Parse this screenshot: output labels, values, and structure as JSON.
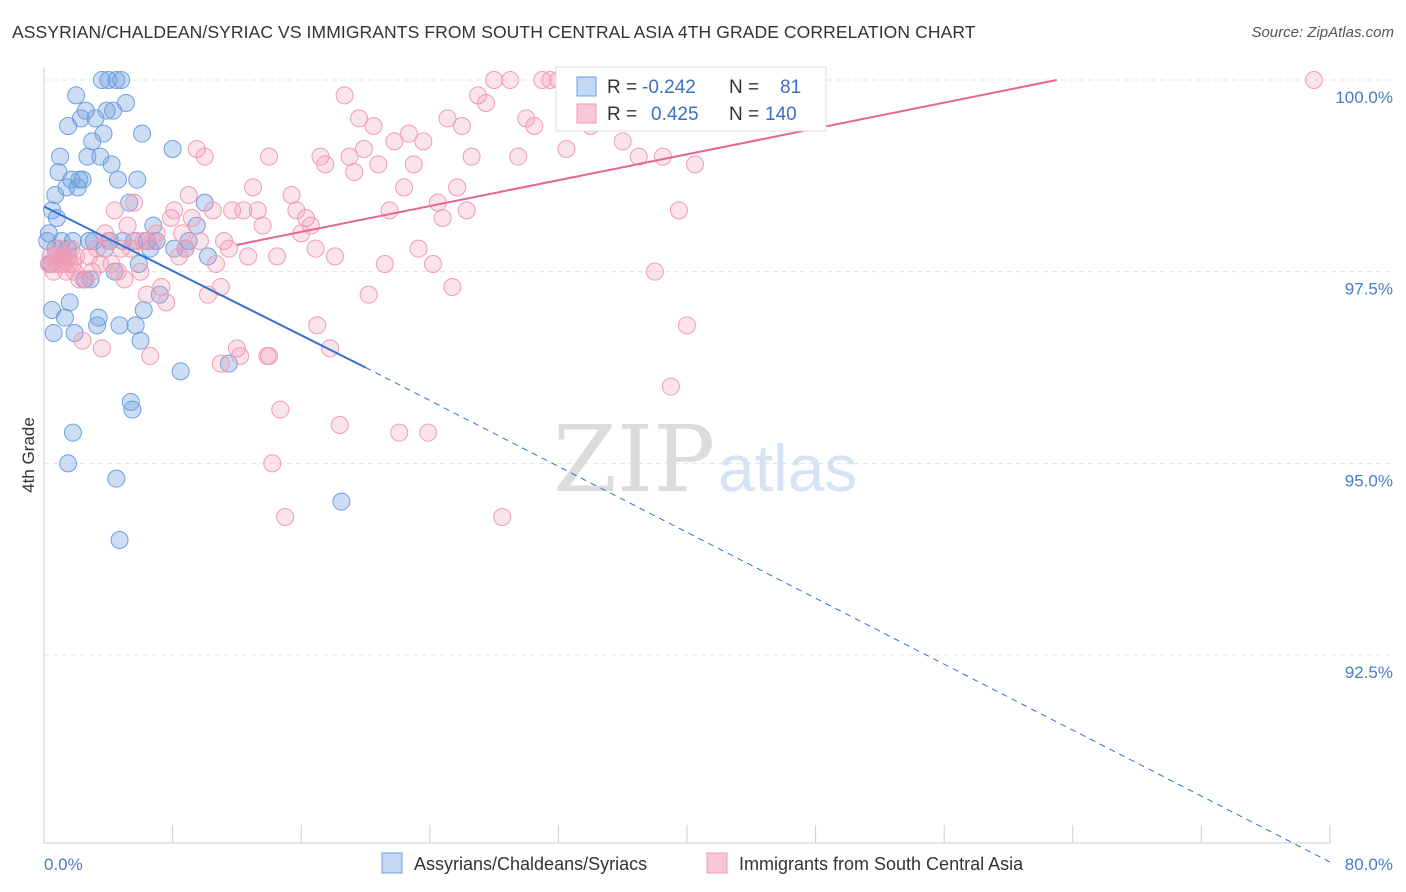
{
  "title": "ASSYRIAN/CHALDEAN/SYRIAC VS IMMIGRANTS FROM SOUTH CENTRAL ASIA 4TH GRADE CORRELATION CHART",
  "source": "Source: ZipAtlas.com",
  "watermark": {
    "zip": "ZIP",
    "atlas": "atlas"
  },
  "chart_data": {
    "type": "scatter",
    "xlabel": "",
    "ylabel": "4th Grade",
    "xlim": [
      0,
      80
    ],
    "ylim": [
      90.0,
      100.2
    ],
    "x_tick_labels": {
      "left": "0.0%",
      "right": "80.0%"
    },
    "y_ticks": [
      {
        "value": 100.0,
        "label": "100.0%"
      },
      {
        "value": 97.5,
        "label": "97.5%"
      },
      {
        "value": 95.0,
        "label": "95.0%"
      },
      {
        "value": 92.5,
        "label": "92.5%"
      }
    ],
    "grid": "horizontal dashed",
    "legend_position": "bottom-center",
    "colors": {
      "blue": "#6fa0e0",
      "blue_line": "#2f72d1",
      "pink": "#f29bb5",
      "pink_line": "#e8648f"
    },
    "stats": {
      "r_label": "R =",
      "n_label": "N =",
      "blue": {
        "r": "-0.242",
        "n": "81"
      },
      "pink": {
        "r": "0.425",
        "n": "140"
      }
    },
    "series": [
      {
        "name": "Assyrians/Chaldeans/Syriacs",
        "color": "#6fa0e0",
        "trend": {
          "x0": 0,
          "y0": 98.35,
          "x1": 20,
          "y1": 96.25,
          "dash_to_x": 80,
          "dash_to_y": 89.8
        },
        "points": [
          [
            0.2,
            97.9
          ],
          [
            0.3,
            98.0
          ],
          [
            0.4,
            97.6
          ],
          [
            0.5,
            98.3
          ],
          [
            0.5,
            97.0
          ],
          [
            0.6,
            96.7
          ],
          [
            0.7,
            98.5
          ],
          [
            0.7,
            97.8
          ],
          [
            0.8,
            98.2
          ],
          [
            0.9,
            98.8
          ],
          [
            1.0,
            99.0
          ],
          [
            1.1,
            97.9
          ],
          [
            1.2,
            97.7
          ],
          [
            1.3,
            96.9
          ],
          [
            1.4,
            98.6
          ],
          [
            1.5,
            99.4
          ],
          [
            1.5,
            97.8
          ],
          [
            1.6,
            97.1
          ],
          [
            1.7,
            98.7
          ],
          [
            1.8,
            97.9
          ],
          [
            1.9,
            96.7
          ],
          [
            2.0,
            99.8
          ],
          [
            2.1,
            98.6
          ],
          [
            2.2,
            98.7
          ],
          [
            2.3,
            99.5
          ],
          [
            2.4,
            98.7
          ],
          [
            2.5,
            97.4
          ],
          [
            2.6,
            99.6
          ],
          [
            2.7,
            99.0
          ],
          [
            2.8,
            97.9
          ],
          [
            2.9,
            97.4
          ],
          [
            3.0,
            99.2
          ],
          [
            3.1,
            97.9
          ],
          [
            3.2,
            99.5
          ],
          [
            3.3,
            96.8
          ],
          [
            3.4,
            96.9
          ],
          [
            3.5,
            99.0
          ],
          [
            3.6,
            100.0
          ],
          [
            3.7,
            99.3
          ],
          [
            3.8,
            97.8
          ],
          [
            3.9,
            99.6
          ],
          [
            4.0,
            100.0
          ],
          [
            4.1,
            97.9
          ],
          [
            4.2,
            98.9
          ],
          [
            4.3,
            99.6
          ],
          [
            4.4,
            97.5
          ],
          [
            4.5,
            100.0
          ],
          [
            4.6,
            98.7
          ],
          [
            4.7,
            96.8
          ],
          [
            4.8,
            100.0
          ],
          [
            4.9,
            97.9
          ],
          [
            5.1,
            99.7
          ],
          [
            5.3,
            98.4
          ],
          [
            5.4,
            95.8
          ],
          [
            5.5,
            95.7
          ],
          [
            5.6,
            97.9
          ],
          [
            5.7,
            96.8
          ],
          [
            5.8,
            98.7
          ],
          [
            5.9,
            97.6
          ],
          [
            6.0,
            96.6
          ],
          [
            6.1,
            99.3
          ],
          [
            6.2,
            97.0
          ],
          [
            6.4,
            97.9
          ],
          [
            6.6,
            97.8
          ],
          [
            6.8,
            98.1
          ],
          [
            7.0,
            97.9
          ],
          [
            7.2,
            97.2
          ],
          [
            8.0,
            99.1
          ],
          [
            8.1,
            97.8
          ],
          [
            8.5,
            96.2
          ],
          [
            8.8,
            97.8
          ],
          [
            9.0,
            97.9
          ],
          [
            9.5,
            98.1
          ],
          [
            10.0,
            98.4
          ],
          [
            10.2,
            97.7
          ],
          [
            11.5,
            96.3
          ],
          [
            18.5,
            94.5
          ],
          [
            1.5,
            95.0
          ],
          [
            1.8,
            95.4
          ],
          [
            4.5,
            94.8
          ],
          [
            4.7,
            94.0
          ]
        ]
      },
      {
        "name": "Immigrants from South Central Asia",
        "color": "#f29bb5",
        "trend": {
          "x0": 12,
          "y0": 97.85,
          "x1": 63,
          "y1": 100.0
        },
        "points": [
          [
            0.3,
            97.6
          ],
          [
            0.4,
            97.7
          ],
          [
            0.5,
            97.6
          ],
          [
            0.6,
            97.5
          ],
          [
            0.7,
            97.7
          ],
          [
            0.8,
            97.6
          ],
          [
            0.9,
            97.8
          ],
          [
            1.0,
            97.7
          ],
          [
            1.1,
            97.6
          ],
          [
            1.2,
            97.6
          ],
          [
            1.3,
            97.7
          ],
          [
            1.4,
            97.5
          ],
          [
            1.5,
            97.7
          ],
          [
            1.6,
            97.6
          ],
          [
            1.7,
            97.8
          ],
          [
            1.8,
            97.6
          ],
          [
            1.9,
            97.5
          ],
          [
            2.0,
            97.7
          ],
          [
            2.2,
            97.4
          ],
          [
            2.4,
            96.6
          ],
          [
            2.6,
            97.4
          ],
          [
            2.8,
            97.7
          ],
          [
            3.0,
            97.5
          ],
          [
            3.3,
            97.8
          ],
          [
            3.5,
            97.6
          ],
          [
            3.6,
            96.5
          ],
          [
            3.8,
            98.0
          ],
          [
            4.0,
            97.9
          ],
          [
            4.2,
            97.6
          ],
          [
            4.4,
            98.3
          ],
          [
            4.6,
            97.5
          ],
          [
            4.8,
            97.8
          ],
          [
            5.0,
            97.4
          ],
          [
            5.2,
            98.1
          ],
          [
            5.4,
            97.8
          ],
          [
            5.6,
            98.4
          ],
          [
            5.8,
            97.9
          ],
          [
            6.0,
            97.5
          ],
          [
            6.2,
            97.9
          ],
          [
            6.4,
            97.2
          ],
          [
            6.6,
            96.4
          ],
          [
            6.8,
            97.9
          ],
          [
            7.0,
            98.0
          ],
          [
            7.3,
            97.3
          ],
          [
            7.6,
            97.1
          ],
          [
            7.9,
            98.2
          ],
          [
            8.1,
            98.3
          ],
          [
            8.4,
            97.7
          ],
          [
            8.6,
            98.0
          ],
          [
            8.8,
            97.8
          ],
          [
            9.0,
            98.5
          ],
          [
            9.2,
            98.2
          ],
          [
            9.5,
            99.1
          ],
          [
            9.7,
            97.9
          ],
          [
            10.0,
            99.0
          ],
          [
            10.2,
            97.2
          ],
          [
            10.5,
            98.3
          ],
          [
            10.7,
            97.6
          ],
          [
            11.0,
            97.3
          ],
          [
            11.2,
            97.9
          ],
          [
            11.5,
            97.8
          ],
          [
            11.7,
            98.3
          ],
          [
            12.0,
            96.5
          ],
          [
            12.2,
            96.4
          ],
          [
            12.4,
            98.3
          ],
          [
            12.7,
            97.7
          ],
          [
            13.0,
            98.6
          ],
          [
            13.3,
            98.3
          ],
          [
            13.6,
            98.1
          ],
          [
            13.9,
            96.4
          ],
          [
            14.0,
            99.0
          ],
          [
            14.2,
            95.0
          ],
          [
            14.5,
            97.7
          ],
          [
            14.7,
            95.7
          ],
          [
            15.0,
            94.3
          ],
          [
            15.4,
            98.5
          ],
          [
            15.7,
            98.3
          ],
          [
            16.0,
            98.0
          ],
          [
            16.3,
            98.2
          ],
          [
            16.6,
            98.1
          ],
          [
            16.9,
            97.8
          ],
          [
            17.2,
            99.0
          ],
          [
            17.5,
            98.9
          ],
          [
            17.8,
            96.5
          ],
          [
            18.1,
            97.7
          ],
          [
            18.4,
            95.5
          ],
          [
            18.7,
            99.8
          ],
          [
            19.0,
            99.0
          ],
          [
            19.3,
            98.8
          ],
          [
            19.6,
            99.5
          ],
          [
            19.9,
            99.1
          ],
          [
            20.2,
            97.2
          ],
          [
            20.5,
            99.4
          ],
          [
            20.8,
            98.9
          ],
          [
            21.2,
            97.6
          ],
          [
            21.5,
            98.3
          ],
          [
            21.8,
            99.2
          ],
          [
            22.1,
            95.4
          ],
          [
            22.4,
            98.6
          ],
          [
            22.7,
            99.3
          ],
          [
            23.0,
            98.9
          ],
          [
            23.3,
            97.8
          ],
          [
            23.6,
            99.2
          ],
          [
            23.9,
            95.4
          ],
          [
            24.2,
            97.6
          ],
          [
            24.5,
            98.4
          ],
          [
            24.8,
            98.2
          ],
          [
            25.1,
            99.5
          ],
          [
            25.4,
            97.3
          ],
          [
            25.7,
            98.6
          ],
          [
            26.0,
            99.4
          ],
          [
            26.3,
            98.3
          ],
          [
            26.6,
            99.0
          ],
          [
            27.0,
            99.8
          ],
          [
            27.5,
            99.7
          ],
          [
            28.0,
            100.0
          ],
          [
            28.5,
            94.3
          ],
          [
            29.0,
            100.0
          ],
          [
            29.5,
            99.0
          ],
          [
            30.0,
            99.5
          ],
          [
            30.5,
            99.4
          ],
          [
            31.0,
            100.0
          ],
          [
            31.5,
            100.0
          ],
          [
            32.0,
            100.0
          ],
          [
            32.5,
            99.1
          ],
          [
            33.0,
            99.5
          ],
          [
            34.0,
            99.4
          ],
          [
            35.0,
            99.6
          ],
          [
            36.0,
            99.2
          ],
          [
            37.0,
            99.0
          ],
          [
            38.0,
            97.5
          ],
          [
            38.5,
            99.0
          ],
          [
            39.0,
            96.0
          ],
          [
            39.5,
            98.3
          ],
          [
            40.0,
            96.8
          ],
          [
            40.5,
            98.9
          ],
          [
            79.0,
            100.0
          ],
          [
            14.0,
            96.4
          ],
          [
            11.0,
            96.3
          ],
          [
            17.0,
            96.8
          ]
        ]
      }
    ]
  }
}
